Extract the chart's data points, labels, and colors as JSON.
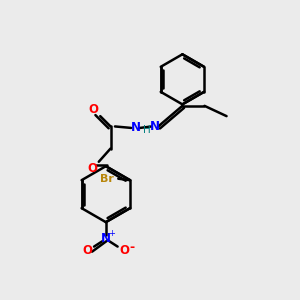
{
  "bg_color": "#ebebeb",
  "bond_color": "#000000",
  "atom_colors": {
    "O": "#ff0000",
    "N": "#0000ff",
    "Br": "#b8860b",
    "H": "#008080"
  },
  "line_width": 1.8,
  "figsize": [
    3.0,
    3.0
  ],
  "dpi": 100
}
